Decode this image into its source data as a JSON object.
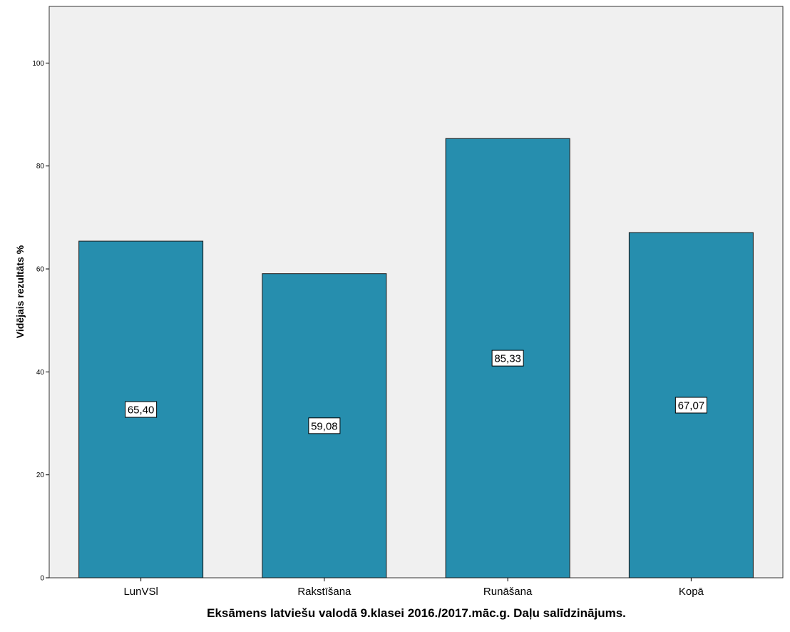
{
  "chart_data": {
    "type": "bar",
    "categories": [
      "LunVSl",
      "Rakstīšana",
      "Runāšana",
      "Kopā"
    ],
    "values": [
      65.4,
      59.08,
      85.33,
      67.07
    ],
    "data_labels": [
      "65,40",
      "59,08",
      "85,33",
      "67,07"
    ],
    "xlabel": "Eksāmens latviešu valodā 9.klasei 2016./2017.māc.g. Daļu salīdzinājums.",
    "ylabel": "Vidējais rezultāts %",
    "ylim": [
      0,
      111
    ],
    "yticks": [
      0,
      20,
      40,
      60,
      80,
      100
    ],
    "grid": false,
    "colors": {
      "bar_fill": "#268EAE",
      "bar_stroke": "#1a1a1a",
      "plot_background": "#F0F0F0",
      "label_box": "#FFFFFF"
    }
  }
}
